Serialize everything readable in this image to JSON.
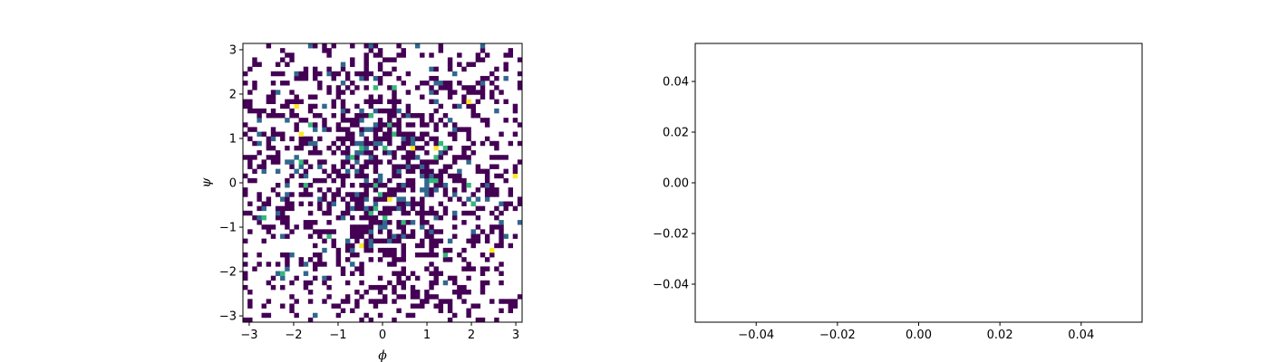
{
  "chart_data": [
    {
      "type": "heatmap",
      "xlabel": "ϕ",
      "ylabel": "ψ",
      "xlim": [
        -3.14159,
        3.14159
      ],
      "ylim": [
        -3.14159,
        3.14159
      ],
      "x_ticks": [
        -3,
        -2,
        -1,
        0,
        1,
        2,
        3
      ],
      "x_tick_labels": [
        "−3",
        "−2",
        "−1",
        "0",
        "1",
        "2",
        "3"
      ],
      "y_ticks": [
        -3,
        -2,
        -1,
        0,
        1,
        2,
        3
      ],
      "y_tick_labels": [
        "−3",
        "−2",
        "−1",
        "0",
        "1",
        "2",
        "3"
      ],
      "bins": 60,
      "colormap": "viridis",
      "empty_bins": "white",
      "count_levels": [
        1,
        2,
        3,
        4
      ],
      "level_colors": [
        "#440154",
        "#31688e",
        "#35b779",
        "#fde725"
      ],
      "distribution": "sparse 2D histogram of (ϕ, ψ) angle pairs; most occupied bins hold 1 count, a few hold 2–3, with the densest region near ϕ≈0, ψ≈0",
      "grid": false
    },
    {
      "type": "scatter",
      "xlabel": "",
      "ylabel": "",
      "series": [],
      "xlim": [
        -0.055,
        0.055
      ],
      "ylim": [
        -0.055,
        0.055
      ],
      "x_ticks": [
        -0.04,
        -0.02,
        0.0,
        0.02,
        0.04
      ],
      "x_tick_labels": [
        "−0.04",
        "−0.02",
        "0.00",
        "0.02",
        "0.04"
      ],
      "y_ticks": [
        -0.04,
        -0.02,
        0.0,
        0.02,
        0.04
      ],
      "y_tick_labels": [
        "−0.04",
        "−0.02",
        "0.00",
        "0.02",
        "0.04"
      ],
      "grid": false
    }
  ]
}
